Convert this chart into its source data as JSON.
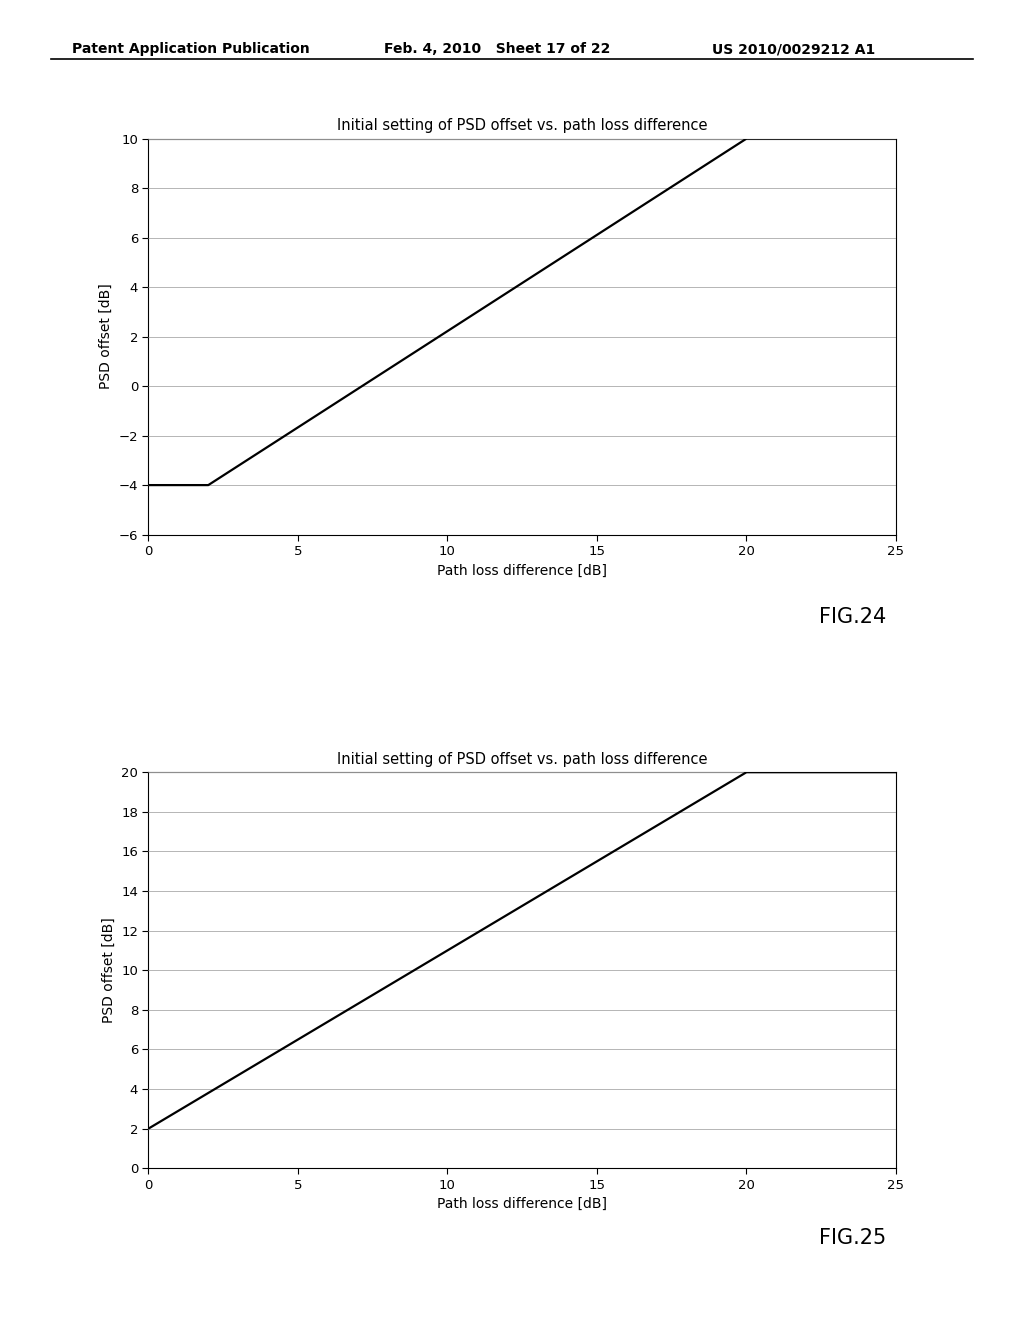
{
  "header_left": "Patent Application Publication",
  "header_mid": "Feb. 4, 2010   Sheet 17 of 22",
  "header_right": "US 2010/0029212 A1",
  "chart1": {
    "title": "Initial setting of PSD offset vs. path loss difference",
    "xlabel": "Path loss difference [dB]",
    "ylabel": "PSD offset [dB]",
    "xlim": [
      0,
      25
    ],
    "ylim": [
      -6,
      10
    ],
    "xticks": [
      0,
      5,
      10,
      15,
      20,
      25
    ],
    "yticks": [
      -6,
      -4,
      -2,
      0,
      2,
      4,
      6,
      8,
      10
    ],
    "line_x": [
      0,
      2,
      20,
      25
    ],
    "line_y": [
      -4,
      -4,
      10,
      10
    ],
    "fig_label": "FIG.24"
  },
  "chart2": {
    "title": "Initial setting of PSD offset vs. path loss difference",
    "xlabel": "Path loss difference [dB]",
    "ylabel": "PSD offset [dB]",
    "xlim": [
      0,
      25
    ],
    "ylim": [
      0,
      20
    ],
    "xticks": [
      0,
      5,
      10,
      15,
      20,
      25
    ],
    "yticks": [
      0,
      2,
      4,
      6,
      8,
      10,
      12,
      14,
      16,
      18,
      20
    ],
    "line_x": [
      0,
      20,
      25
    ],
    "line_y": [
      2,
      20,
      20
    ],
    "fig_label": "FIG.25"
  },
  "background_color": "#ffffff",
  "line_color": "#000000",
  "grid_color": "#aaaaaa",
  "title_fontsize": 10.5,
  "label_fontsize": 10,
  "tick_fontsize": 9.5,
  "header_fontsize": 10,
  "figlabel_fontsize": 15
}
